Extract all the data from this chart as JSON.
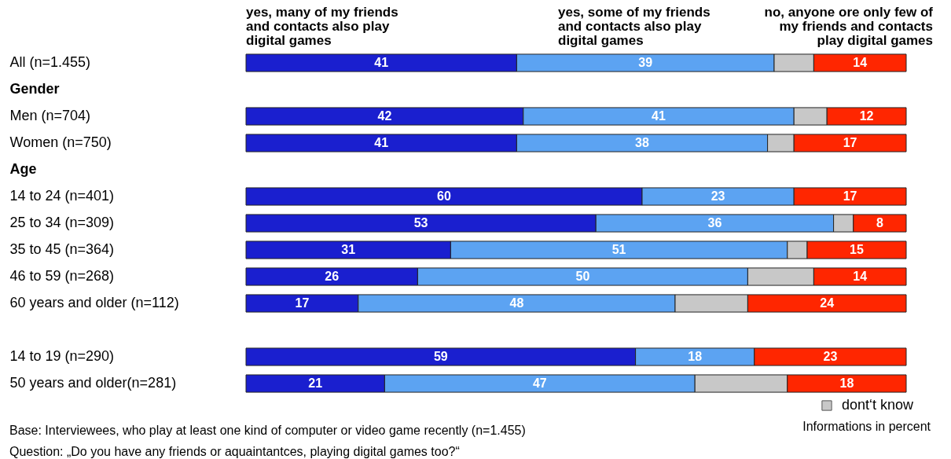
{
  "chart_data": {
    "type": "bar",
    "orientation": "horizontal",
    "stacked": true,
    "categories": [
      "All (n=1.455)",
      "Gender",
      "Men (n=704)",
      "Women (n=750)",
      "Age",
      "14 to 24 (n=401)",
      "25 to 34 (n=309)",
      "35 to 45 (n=364)",
      "46 to 59 (n=268)",
      "60 years and older (n=112)",
      null,
      "14 to 19 (n=290)",
      "50 years and older(n=281)"
    ],
    "xlim": [
      0,
      100
    ],
    "series": [
      {
        "name": "yes, many of my friends and contacts also play digital games",
        "color": "#1a1fcf",
        "values": [
          41,
          null,
          42,
          41,
          null,
          60,
          53,
          31,
          26,
          17,
          null,
          59,
          21
        ],
        "value_labels": [
          "41",
          null,
          "42",
          "41",
          null,
          "60",
          "53",
          "31",
          "26",
          "17",
          null,
          "59",
          "21"
        ]
      },
      {
        "name": "yes, some of my friends and contacts also play digital games",
        "color": "#5ca3f2",
        "values": [
          39,
          null,
          41,
          38,
          null,
          23,
          36,
          51,
          50,
          48,
          null,
          18,
          47
        ],
        "value_labels": [
          "39",
          null,
          "41",
          "38",
          null,
          "23",
          "36",
          "51",
          "50",
          "48",
          null,
          "18",
          "47"
        ]
      },
      {
        "name": "dont‘t know",
        "color": "#c8c8c8",
        "values": [
          6,
          null,
          5,
          4,
          null,
          null,
          3,
          3,
          10,
          11,
          null,
          null,
          14
        ]
      },
      {
        "name": "no, anyone ore only few of my friends and contacts play digital games",
        "color": "#ff2600",
        "values": [
          14,
          null,
          12,
          17,
          null,
          17,
          8,
          15,
          14,
          24,
          null,
          23,
          18
        ],
        "value_labels": [
          "14",
          null,
          "12",
          "17",
          null,
          "17",
          "8",
          "15",
          "14",
          "24",
          null,
          "23",
          "18"
        ]
      }
    ],
    "legend": "bottom right",
    "tick_labels": "y",
    "annotations": [
      "Informations in percent",
      "Base: Interviewees, who play at least one kind of computer or video game recently (n=1.455)",
      "Question: „Do you have any friends or aquaintantces, playing digital games too?“"
    ]
  }
}
